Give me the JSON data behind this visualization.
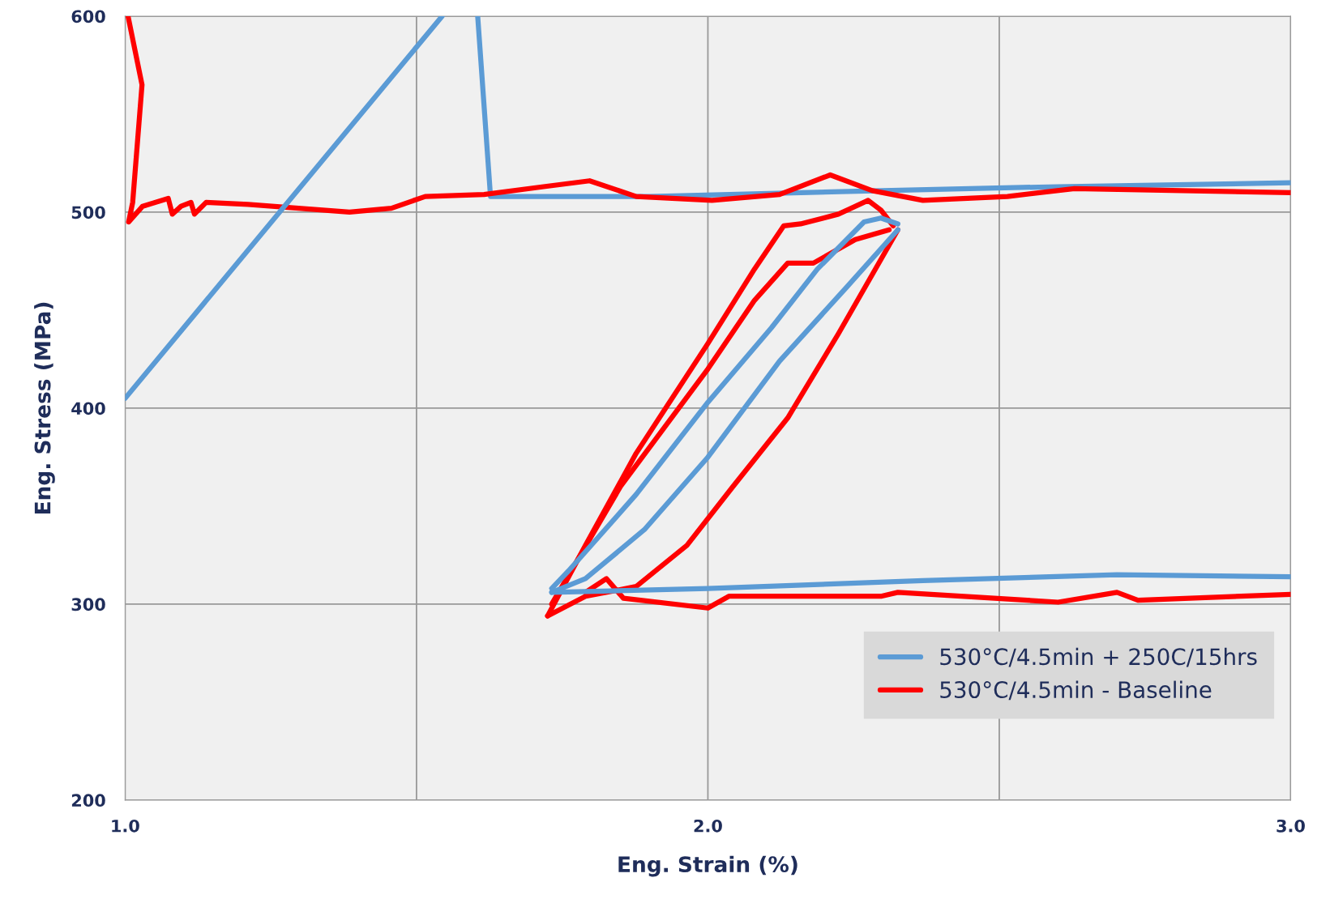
{
  "chart_data": {
    "type": "line",
    "xlabel": "Eng. Strain (%)",
    "ylabel": "Eng. Stress (MPa)",
    "xlim": [
      1.0,
      3.0
    ],
    "ylim": [
      200,
      600
    ],
    "xticks": [
      {
        "value": 1.0,
        "label": "1.0"
      },
      {
        "value": 1.5,
        "label": null
      },
      {
        "value": 2.0,
        "label": "2.0"
      },
      {
        "value": 2.5,
        "label": null
      },
      {
        "value": 3.0,
        "label": "3.0"
      }
    ],
    "yticks": [
      200,
      300,
      400,
      500,
      600
    ],
    "grid": true,
    "legend": "bottom right",
    "line_style": "solid",
    "marker": "none",
    "series": [
      {
        "name": "530°C/4.5min + 250C/15hrs",
        "color": "#5b9bd5",
        "x": [
          1.0,
          1.544
        ],
        "values": [
          405,
          600
        ]
      },
      {
        "name": "530°C/4.5min - Baseline",
        "color": "#ff0000",
        "x": [
          1.005,
          1.029,
          1.013,
          1.006,
          1.03,
          1.074,
          1.081,
          1.096,
          1.113,
          1.119,
          1.139,
          1.211,
          1.385,
          1.457,
          1.515,
          1.616,
          1.718,
          1.797,
          1.877,
          2.007,
          2.123,
          2.21,
          2.282,
          2.369,
          2.514,
          2.629,
          3.0
        ],
        "values": [
          600,
          565,
          505,
          495,
          503,
          507,
          499,
          503,
          505,
          499,
          505,
          504,
          500,
          502,
          508,
          509,
          513,
          516,
          508,
          506,
          509,
          519,
          511,
          506,
          508,
          512,
          510
        ]
      },
      {
        "color": "#5b9bd5",
        "x": [
          1.605,
          1.627,
          1.9,
          2.3,
          2.6,
          3.0
        ],
        "values": [
          600,
          508,
          508,
          511,
          513,
          515
        ]
      },
      {
        "color": "#5b9bd5",
        "x": [
          1.732,
          1.761,
          1.877,
          2.0,
          2.109,
          2.188,
          2.268,
          2.297,
          2.326
        ],
        "values": [
          308,
          317,
          356,
          403,
          441,
          471,
          495,
          497,
          494
        ]
      },
      {
        "color": "#5b9bd5",
        "x": [
          1.732,
          1.79,
          1.891,
          2.0,
          2.123,
          2.239,
          2.326
        ],
        "values": [
          306,
          313,
          338,
          375,
          424,
          462,
          491
        ]
      },
      {
        "color": "#5b9bd5",
        "x": [
          1.732,
          2.0,
          2.369,
          2.702,
          3.0
        ],
        "values": [
          306,
          308,
          312,
          315,
          314
        ]
      },
      {
        "color": "#ff0000",
        "x": [
          1.725,
          1.79,
          1.877,
          2.0,
          2.08,
          2.13,
          2.159,
          2.224,
          2.275,
          2.297,
          2.318
        ],
        "values": [
          294,
          330,
          377,
          433,
          471,
          493,
          494,
          499,
          506,
          501,
          493
        ]
      },
      {
        "color": "#ff0000",
        "x": [
          1.725,
          1.79,
          1.877,
          1.964,
          2.043,
          2.137,
          2.224,
          2.326
        ],
        "values": [
          294,
          304,
          309,
          330,
          360,
          395,
          438,
          491
        ]
      },
      {
        "color": "#ff0000",
        "x": [
          1.732,
          1.85,
          2.0,
          2.08,
          2.137,
          2.181,
          2.253,
          2.311
        ],
        "values": [
          300,
          360,
          420,
          455,
          474,
          474,
          486,
          491
        ]
      },
      {
        "color": "#ff0000",
        "x": [
          1.79,
          1.826,
          1.855,
          2.0,
          2.036,
          2.152,
          2.297,
          2.326,
          2.601,
          2.702,
          2.738,
          3.0
        ],
        "values": [
          306,
          313,
          303,
          298,
          304,
          304,
          304,
          306,
          301,
          306,
          302,
          305
        ]
      }
    ]
  }
}
